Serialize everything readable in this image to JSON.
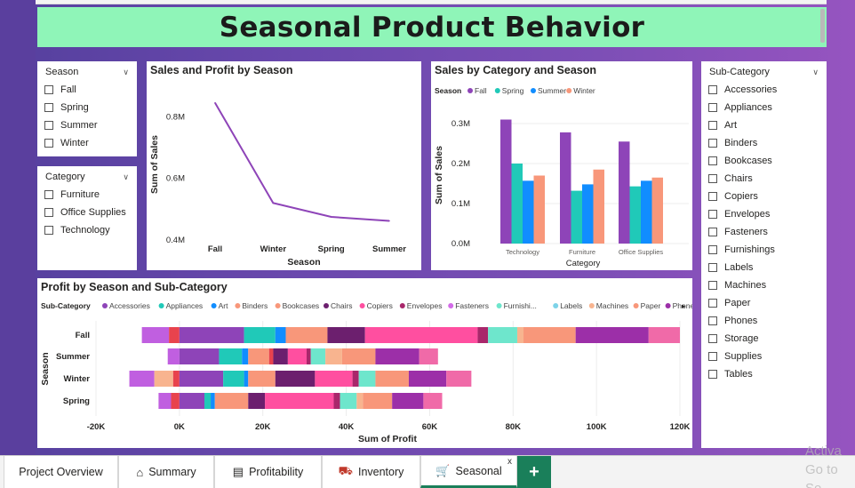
{
  "title": "Seasonal Product Behavior",
  "season_slicer": {
    "header": "Season",
    "items": [
      "Fall",
      "Spring",
      "Summer",
      "Winter"
    ]
  },
  "category_slicer": {
    "header": "Category",
    "items": [
      "Furniture",
      "Office Supplies",
      "Technology"
    ]
  },
  "subcategory_slicer": {
    "header": "Sub-Category",
    "items": [
      "Accessories",
      "Appliances",
      "Art",
      "Binders",
      "Bookcases",
      "Chairs",
      "Copiers",
      "Envelopes",
      "Fasteners",
      "Furnishings",
      "Labels",
      "Machines",
      "Paper",
      "Phones",
      "Storage",
      "Supplies",
      "Tables"
    ]
  },
  "colors": {
    "Fall": "#8e44b8",
    "Spring": "#20c9b8",
    "Summer": "#118dff",
    "Winter": "#f8977a",
    "line": "#8e44b8",
    "accent": "#1a7f5a",
    "title_bg": "#8ff5b8"
  },
  "chart_data": [
    {
      "type": "line",
      "title": "Sales and Profit by Season",
      "xlabel": "Season",
      "ylabel": "Sum of Sales",
      "categories": [
        "Fall",
        "Winter",
        "Spring",
        "Summer"
      ],
      "values": [
        0.845,
        0.52,
        0.475,
        0.462
      ],
      "value_unit": "M",
      "yticks": [
        "0.4M",
        "0.6M",
        "0.8M"
      ],
      "ylim": [
        0.4,
        0.85
      ]
    },
    {
      "type": "bar",
      "title": "Sales by Category and Season",
      "legend_title": "Season",
      "xlabel": "Category",
      "ylabel": "Sum of Sales",
      "categories": [
        "Technology",
        "Furniture",
        "Office Supplies"
      ],
      "series": [
        {
          "name": "Fall",
          "values": [
            0.31,
            0.278,
            0.255
          ]
        },
        {
          "name": "Spring",
          "values": [
            0.2,
            0.132,
            0.143
          ]
        },
        {
          "name": "Summer",
          "values": [
            0.157,
            0.148,
            0.157
          ]
        },
        {
          "name": "Winter",
          "values": [
            0.17,
            0.185,
            0.165
          ]
        }
      ],
      "value_unit": "M",
      "yticks": [
        "0.0M",
        "0.1M",
        "0.2M",
        "0.3M"
      ],
      "ylim": [
        0,
        0.35
      ]
    },
    {
      "type": "bar",
      "orientation": "horizontal-stacked",
      "title": "Profit by Season and Sub-Category",
      "legend_title": "Sub-Category",
      "xlabel": "Sum of Profit",
      "ylabel": "Season",
      "categories": [
        "Fall",
        "Summer",
        "Winter",
        "Spring"
      ],
      "legend": [
        "Accessories",
        "Appliances",
        "Art",
        "Binders",
        "Bookcases",
        "Chairs",
        "Copiers",
        "Envelopes",
        "Fasteners",
        "Furnishi...",
        "Labels",
        "Machines",
        "Paper",
        "Phones"
      ],
      "legend_colors": [
        "#8e44b8",
        "#20c9b8",
        "#118dff",
        "#f8977a",
        "#f8977a",
        "#6c1f6e",
        "#ff4fa0",
        "#a9276b",
        "#d36be8",
        "#6ee6cc",
        "#7dd3e8",
        "#f8b48f",
        "#f8977a",
        "#9c2fa8"
      ],
      "segments": {
        "Fall": [
          {
            "from": -9000,
            "to": -2500,
            "color": "#c05fe0"
          },
          {
            "from": -2500,
            "to": 0,
            "color": "#e8434d"
          },
          {
            "from": 0,
            "to": 15500,
            "color": "#8e44b8"
          },
          {
            "from": 15500,
            "to": 23000,
            "color": "#20c9b8"
          },
          {
            "from": 23000,
            "to": 25500,
            "color": "#118dff"
          },
          {
            "from": 25500,
            "to": 35500,
            "color": "#f8977a"
          },
          {
            "from": 35500,
            "to": 44500,
            "color": "#6c1f6e"
          },
          {
            "from": 44500,
            "to": 71500,
            "color": "#ff4fa0"
          },
          {
            "from": 71500,
            "to": 74000,
            "color": "#a9276b"
          },
          {
            "from": 74000,
            "to": 81000,
            "color": "#6ee6cc"
          },
          {
            "from": 81000,
            "to": 82500,
            "color": "#f8b48f"
          },
          {
            "from": 82500,
            "to": 95000,
            "color": "#f8977a"
          },
          {
            "from": 95000,
            "to": 112500,
            "color": "#9c2fa8"
          },
          {
            "from": 112500,
            "to": 120000,
            "color": "#f06aa8"
          }
        ],
        "Summer": [
          {
            "from": -2800,
            "to": 0,
            "color": "#c05fe0"
          },
          {
            "from": 0,
            "to": 9500,
            "color": "#8e44b8"
          },
          {
            "from": 9500,
            "to": 15000,
            "color": "#20c9b8"
          },
          {
            "from": 15000,
            "to": 16500,
            "color": "#118dff"
          },
          {
            "from": 16500,
            "to": 21500,
            "color": "#f8977a"
          },
          {
            "from": 21500,
            "to": 22500,
            "color": "#e8434d"
          },
          {
            "from": 22500,
            "to": 26000,
            "color": "#6c1f6e"
          },
          {
            "from": 26000,
            "to": 30500,
            "color": "#ff4fa0"
          },
          {
            "from": 30500,
            "to": 31500,
            "color": "#a9276b"
          },
          {
            "from": 31500,
            "to": 35000,
            "color": "#6ee6cc"
          },
          {
            "from": 35000,
            "to": 39000,
            "color": "#f8b48f"
          },
          {
            "from": 39000,
            "to": 47000,
            "color": "#f8977a"
          },
          {
            "from": 47000,
            "to": 57500,
            "color": "#9c2fa8"
          },
          {
            "from": 57500,
            "to": 62000,
            "color": "#f06aa8"
          }
        ],
        "Winter": [
          {
            "from": -12000,
            "to": -6000,
            "color": "#c05fe0"
          },
          {
            "from": -6000,
            "to": -1500,
            "color": "#f8b48f"
          },
          {
            "from": -1500,
            "to": 0,
            "color": "#e8434d"
          },
          {
            "from": 0,
            "to": 10500,
            "color": "#8e44b8"
          },
          {
            "from": 10500,
            "to": 15500,
            "color": "#20c9b8"
          },
          {
            "from": 15500,
            "to": 16500,
            "color": "#118dff"
          },
          {
            "from": 16500,
            "to": 23000,
            "color": "#f8977a"
          },
          {
            "from": 23000,
            "to": 32500,
            "color": "#6c1f6e"
          },
          {
            "from": 32500,
            "to": 41500,
            "color": "#ff4fa0"
          },
          {
            "from": 41500,
            "to": 43000,
            "color": "#a9276b"
          },
          {
            "from": 43000,
            "to": 47000,
            "color": "#6ee6cc"
          },
          {
            "from": 47000,
            "to": 55000,
            "color": "#f8977a"
          },
          {
            "from": 55000,
            "to": 64000,
            "color": "#9c2fa8"
          },
          {
            "from": 64000,
            "to": 70000,
            "color": "#f06aa8"
          }
        ],
        "Spring": [
          {
            "from": -5000,
            "to": -2000,
            "color": "#c05fe0"
          },
          {
            "from": -2000,
            "to": 0,
            "color": "#e8434d"
          },
          {
            "from": 0,
            "to": 6000,
            "color": "#8e44b8"
          },
          {
            "from": 6000,
            "to": 7500,
            "color": "#20c9b8"
          },
          {
            "from": 7500,
            "to": 8500,
            "color": "#118dff"
          },
          {
            "from": 8500,
            "to": 16500,
            "color": "#f8977a"
          },
          {
            "from": 16500,
            "to": 20500,
            "color": "#6c1f6e"
          },
          {
            "from": 20500,
            "to": 37000,
            "color": "#ff4fa0"
          },
          {
            "from": 37000,
            "to": 38500,
            "color": "#a9276b"
          },
          {
            "from": 38500,
            "to": 42500,
            "color": "#6ee6cc"
          },
          {
            "from": 42500,
            "to": 44000,
            "color": "#f8b48f"
          },
          {
            "from": 44000,
            "to": 51000,
            "color": "#f8977a"
          },
          {
            "from": 51000,
            "to": 58500,
            "color": "#9c2fa8"
          },
          {
            "from": 58500,
            "to": 63000,
            "color": "#f06aa8"
          }
        ]
      },
      "xticks": [
        "-20K",
        "0K",
        "20K",
        "40K",
        "60K",
        "80K",
        "100K",
        "120K"
      ],
      "xlim": [
        -20000,
        120000
      ]
    }
  ],
  "tabs": [
    {
      "label": "Project Overview",
      "icon": ""
    },
    {
      "label": "Summary",
      "icon": "home-icon"
    },
    {
      "label": "Profitability",
      "icon": "bar-chart-icon"
    },
    {
      "label": "Inventory",
      "icon": "truck-icon"
    },
    {
      "label": "Seasonal",
      "icon": "cart-icon",
      "active": true
    }
  ],
  "add_tab": "+",
  "close_tab": "x",
  "watermark": [
    "Activa",
    "Go to Se"
  ]
}
